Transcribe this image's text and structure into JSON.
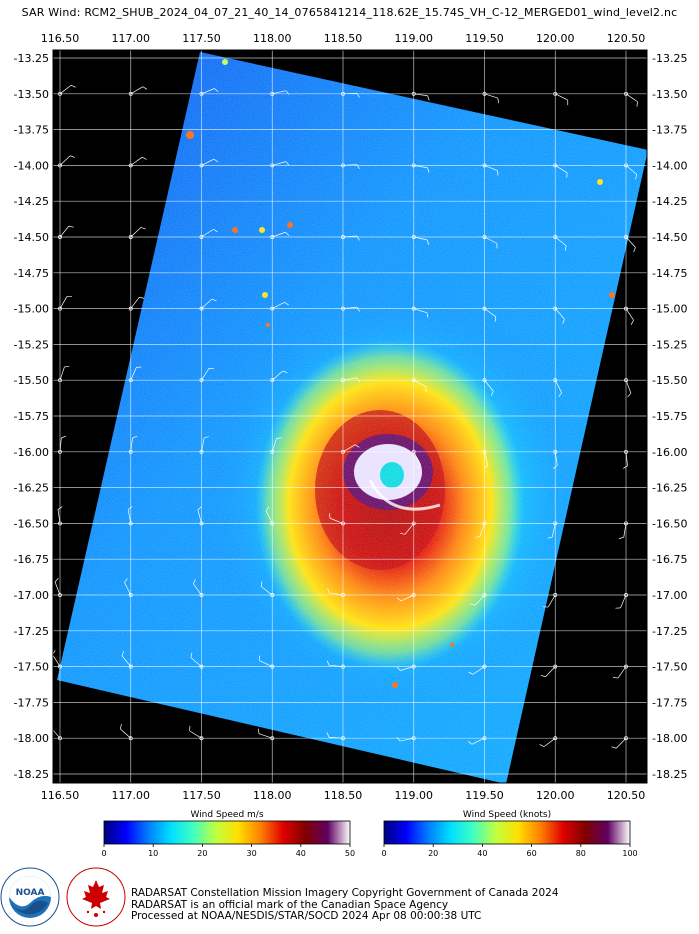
{
  "title": "SAR Wind: RCM2_SHUB_2024_04_07_21_40_14_0765841214_118.62E_15.74S_VH_C-12_MERGED01_wind_level2.nc",
  "map": {
    "lon_ticks": [
      "116.50",
      "117.00",
      "117.50",
      "118.00",
      "118.50",
      "119.00",
      "119.50",
      "120.00",
      "120.50"
    ],
    "lat_ticks": [
      "-13.25",
      "-13.50",
      "-13.75",
      "-14.00",
      "-14.25",
      "-14.50",
      "-14.75",
      "-15.00",
      "-15.25",
      "-15.50",
      "-15.75",
      "-16.00",
      "-16.25",
      "-16.50",
      "-16.75",
      "-17.00",
      "-17.25",
      "-17.50",
      "-17.75",
      "-18.00",
      "-18.25"
    ],
    "background_color": "#000000",
    "grid_color": "#ffffff",
    "eye_location": {
      "lon": 118.62,
      "lat": -16.2
    }
  },
  "colorbars": [
    {
      "title": "Wind Speed m/s",
      "ticks": [
        "0",
        "10",
        "20",
        "30",
        "40",
        "50"
      ],
      "min": 0,
      "max": 50
    },
    {
      "title": "Wind Speed (knots)",
      "ticks": [
        "0",
        "20",
        "40",
        "60",
        "80",
        "100"
      ],
      "min": 0,
      "max": 100
    }
  ],
  "colormap": [
    "#00007f",
    "#0000ff",
    "#0080ff",
    "#00e0ff",
    "#40ffc0",
    "#c0ff40",
    "#ffe000",
    "#ff8000",
    "#e00000",
    "#800000",
    "#600060",
    "#ffffff"
  ],
  "logos": {
    "noaa_ring_text": "NATIONAL OCEANIC AND ATMOSPHERIC ADMINISTRATION · U.S. DEPARTMENT OF COMMERCE",
    "noaa_label": "NOAA",
    "csa_ring_text": "CANADIAN SPACE AGENCY · AGENCE SPATIALE CANADIENNE"
  },
  "credits": [
    "RADARSAT Constellation Mission Imagery Copyright Government of Canada 2024",
    "RADARSAT is an official mark of the Canadian Space Agency",
    "Processed at NOAA/NESDIS/STAR/SOCD 2024 Apr 08 00:00:38 UTC"
  ]
}
